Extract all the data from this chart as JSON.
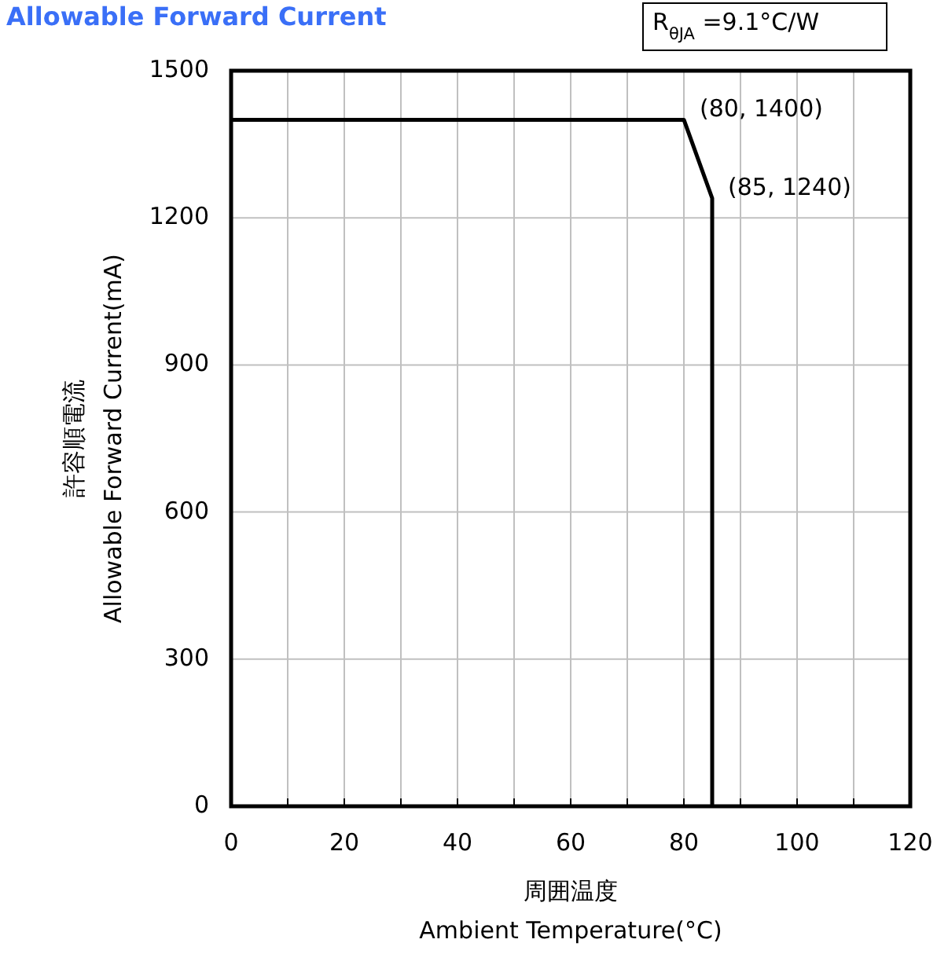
{
  "chart_data": {
    "type": "line",
    "title": "Allowable Forward Current",
    "xlabel": "周囲温度\nAmbient Temperature(°C)",
    "ylabel": "許容順電流\nAllowable Forward Current(mA)",
    "x": [
      0,
      80,
      85,
      85
    ],
    "series": [
      {
        "color": "#000000",
        "values": [
          1400,
          1400,
          1240,
          0
        ]
      }
    ],
    "xlim": [
      0,
      120
    ],
    "ylim": [
      0,
      1500
    ],
    "xticks": [
      0,
      {
        "value": 10,
        "label": null
      },
      20,
      {
        "value": 30,
        "label": null
      },
      40,
      {
        "value": 50,
        "label": null
      },
      60,
      {
        "value": 70,
        "label": null
      },
      80,
      {
        "value": 90,
        "label": null
      },
      100,
      {
        "value": 110,
        "label": null
      },
      120
    ],
    "yticks": [
      0,
      300,
      600,
      900,
      1200,
      1500
    ],
    "grid": true,
    "marker": "none",
    "line_style": "solid",
    "annotations": [
      "R$_{θJA}$ =9.1°C/W",
      {
        "text": "(80, 1400)",
        "x": 80,
        "y": 1400
      },
      {
        "text": "(85, 1240)",
        "x": 85,
        "y": 1240
      }
    ]
  }
}
